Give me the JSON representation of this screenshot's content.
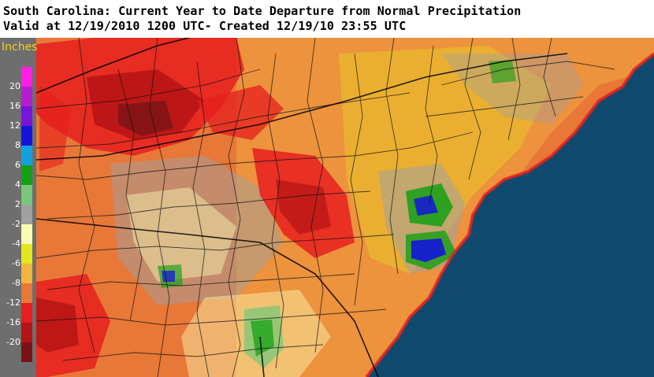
{
  "header": {
    "line1": "South Carolina: Current Year to Date Departure from Normal Precipitation",
    "line2": "Valid at 12/19/2010 1200 UTC- Created 12/19/10 23:55 UTC"
  },
  "legend": {
    "title": "Inches",
    "colors": [
      "#ff1ee6",
      "#b41ed2",
      "#7814dc",
      "#1414dc",
      "#14a0dc",
      "#14a014",
      "#78c878",
      "#a0a0a0",
      "#fafab4",
      "#e6e61e",
      "#f5b43c",
      "#e87838",
      "#e61e1e",
      "#b41414",
      "#781414"
    ],
    "ticks": [
      "20",
      "16",
      "12",
      "8",
      "6",
      "4",
      "2",
      "-2",
      "-4",
      "-6",
      "-8",
      "-12",
      "-16",
      "-20"
    ]
  },
  "map": {
    "ocean_color": "#0f4a6e",
    "base_color": "#e87838"
  }
}
